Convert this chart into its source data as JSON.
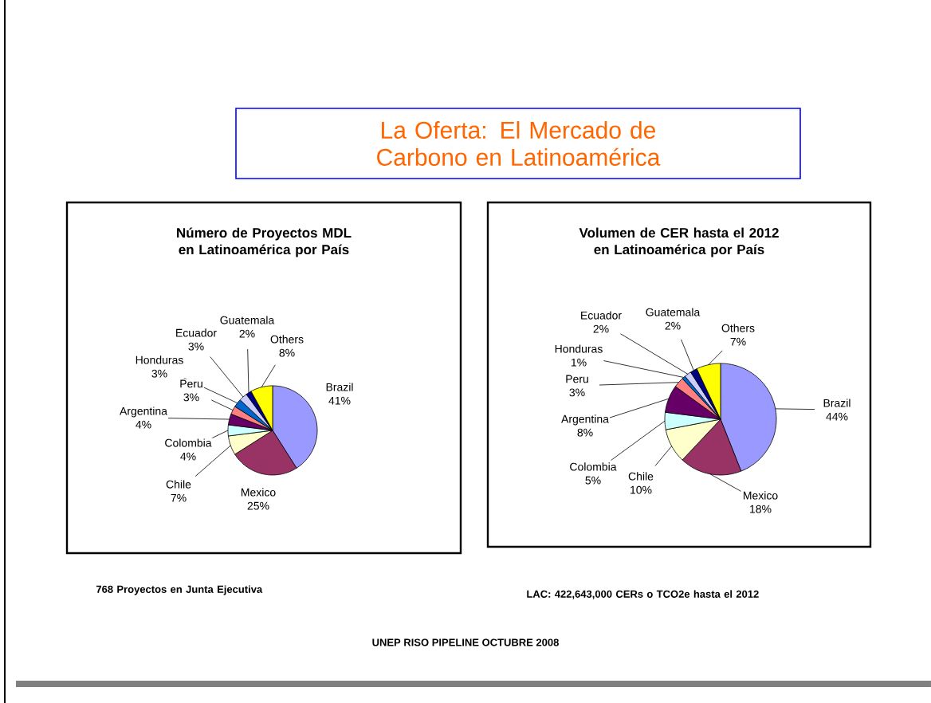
{
  "chart_data": [
    {
      "type": "other",
      "title": "La Oferta: El Mercado de Carbono en Latinoamérica",
      "annotations": [
        "UNEP RISO PIPELINE OCTUBRE 2008"
      ]
    },
    {
      "type": "pie",
      "title": "Número de Proyectos MDL en Latinoamérica por País",
      "categories": [
        "Brazil",
        "Mexico",
        "Chile",
        "Colombia",
        "Argentina",
        "Peru",
        "Honduras",
        "Ecuador",
        "Guatemala",
        "Others"
      ],
      "values": [
        41,
        25,
        7,
        4,
        4,
        3,
        3,
        3,
        2,
        8
      ],
      "value_labels": [
        "41%",
        "25%",
        "7%",
        "4%",
        "4%",
        "3%",
        "3%",
        "3%",
        "2%",
        "8%"
      ],
      "colors": [
        "#9999ff",
        "#993366",
        "#ffffcc",
        "#ccffff",
        "#660066",
        "#ff8080",
        "#0066cc",
        "#ccccff",
        "#000080",
        "#ffff00"
      ],
      "annotations": [
        "768  Proyectos en Junta Ejecutiva"
      ]
    },
    {
      "type": "pie",
      "title": "Volumen de CER hasta el 2012 en Latinoamérica por País",
      "categories": [
        "Brazil",
        "Mexico",
        "Chile",
        "Colombia",
        "Argentina",
        "Peru",
        "Honduras",
        "Ecuador",
        "Guatemala",
        "Others"
      ],
      "values": [
        44,
        18,
        10,
        5,
        8,
        3,
        1,
        2,
        2,
        7
      ],
      "value_labels": [
        "44%",
        "18%",
        "10%",
        "5%",
        "8%",
        "3%",
        "1%",
        "2%",
        "2%",
        "7%"
      ],
      "colors": [
        "#9999ff",
        "#993366",
        "#ffffcc",
        "#ccffff",
        "#660066",
        "#ff8080",
        "#0066cc",
        "#ccccff",
        "#000080",
        "#ffff00"
      ],
      "annotations": [
        "LAC: 422,643,000 CERs o TCO2e hasta el 2012"
      ]
    }
  ]
}
